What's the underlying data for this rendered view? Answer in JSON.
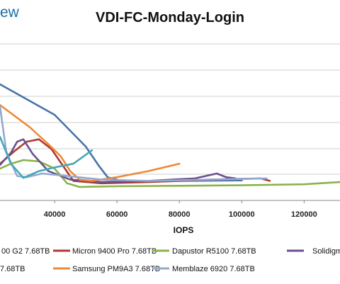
{
  "logo": {
    "text": "ew"
  },
  "colors": {
    "grid": "#cfcfcf",
    "axis": "#888888",
    "steel_blue": "#4a74a6",
    "dark_red": "#b03a2e",
    "green": "#8ab34a",
    "purple": "#6a4f8f",
    "orange": "#ee8a3a",
    "light_blue": "#93a9d2",
    "teal": "#45a6b8"
  },
  "chart_data": {
    "type": "line",
    "title": "VDI-FC-Monday-Login",
    "xlabel": "IOPS",
    "ylabel": "",
    "x_ticks": [
      "40000",
      "60000",
      "80000",
      "100000",
      "120000"
    ],
    "x_tick_values": [
      40000,
      60000,
      80000,
      100000,
      120000
    ],
    "xlim": [
      22500,
      131500
    ],
    "ylim": [
      0,
      6.4
    ],
    "grid": true,
    "legend_position": "bottom",
    "legend": [
      {
        "label": "00 G2 7.68TB",
        "color_key": "steel_blue"
      },
      {
        "label": "Micron 9400 Pro 7.68TB",
        "color_key": "dark_red"
      },
      {
        "label": "Dapustor R5100 7.68TB",
        "color_key": "green"
      },
      {
        "label": "Solidigm",
        "color_key": "purple"
      },
      {
        "label": "7.68TB",
        "color_key": "teal"
      },
      {
        "label": "Samsung PM9A3 7.68TB",
        "color_key": "orange"
      },
      {
        "label": "Memblaze 6920 7.68TB",
        "color_key": "light_blue"
      }
    ],
    "series": [
      {
        "color_key": "steel_blue",
        "x": [
          22500,
          40000,
          50000,
          54000,
          57000,
          63000,
          80000,
          100000
        ],
        "y": [
          4.75,
          3.5,
          2.2,
          1.45,
          0.95,
          0.75,
          0.8,
          0.82
        ]
      },
      {
        "color_key": "dark_red",
        "x": [
          22500,
          27000,
          31000,
          35000,
          39000,
          46000,
          55000,
          70000,
          90000,
          106000,
          109000
        ],
        "y": [
          1.5,
          2.0,
          2.4,
          2.5,
          2.1,
          0.8,
          0.7,
          0.75,
          0.85,
          0.9,
          0.8
        ]
      },
      {
        "color_key": "green",
        "x": [
          22500,
          26000,
          30000,
          35000,
          40000,
          44000,
          48000,
          60000,
          80000,
          100000,
          120000,
          131500
        ],
        "y": [
          1.3,
          1.5,
          1.65,
          1.6,
          1.3,
          0.7,
          0.55,
          0.58,
          0.6,
          0.62,
          0.66,
          0.75
        ]
      },
      {
        "color_key": "purple",
        "x": [
          22500,
          26000,
          28000,
          30000,
          33000,
          38000,
          45000,
          55000,
          70000,
          85000,
          92000,
          95000,
          98000
        ],
        "y": [
          1.45,
          1.95,
          2.4,
          2.5,
          1.9,
          1.2,
          0.85,
          0.75,
          0.8,
          0.9,
          1.1,
          0.95,
          0.9
        ]
      },
      {
        "color_key": "orange",
        "x": [
          22500,
          32000,
          38000,
          42000,
          45000,
          48000,
          52000,
          60000,
          70000,
          80000
        ],
        "y": [
          3.9,
          3.0,
          2.3,
          1.8,
          1.2,
          0.85,
          0.8,
          0.95,
          1.2,
          1.5
        ]
      },
      {
        "color_key": "light_blue",
        "x": [
          22500,
          24500,
          26000,
          28000,
          31000,
          36000,
          44000,
          55000,
          70000,
          90000,
          108000
        ],
        "y": [
          3.85,
          2.0,
          1.55,
          1.0,
          0.95,
          1.1,
          1.0,
          0.85,
          0.8,
          0.85,
          0.9
        ]
      },
      {
        "color_key": "teal",
        "x": [
          22500,
          26000,
          30000,
          35000,
          40000,
          46000,
          52000
        ],
        "y": [
          2.6,
          1.5,
          0.92,
          1.2,
          1.35,
          1.5,
          2.05
        ]
      }
    ]
  }
}
